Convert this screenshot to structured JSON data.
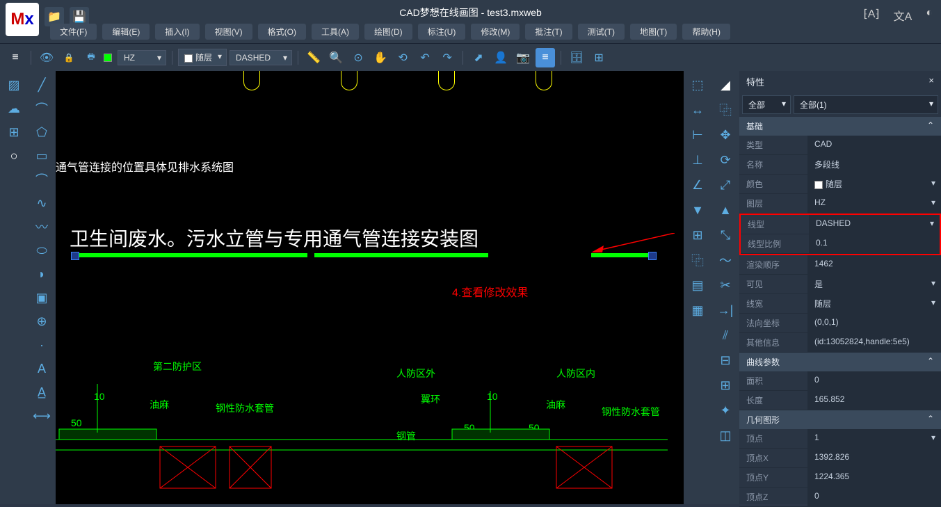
{
  "app": {
    "title": "CAD梦想在线画图 - test3.mxweb"
  },
  "menu": {
    "items": [
      "文件(F)",
      "编辑(E)",
      "插入(I)",
      "视图(V)",
      "格式(O)",
      "工具(A)",
      "绘图(D)",
      "标注(U)",
      "修改(M)",
      "批注(T)",
      "测试(T)",
      "地图(T)",
      "帮助(H)"
    ]
  },
  "toolbar": {
    "layer": "HZ",
    "color_label": "随层",
    "linetype": "DASHED"
  },
  "canvas": {
    "text1": "通气管连接的位置具体见排水系统图",
    "text2": "卫生间废水。污水立管与专用通气管连接安装图",
    "annotation": "4.查看修改效果",
    "label_area1": "第二防护区",
    "label_area2": "人防区外",
    "label_area3": "人防区内",
    "label_youma": "油麻",
    "label_pipe": "钢性防水套管",
    "label_pipe2": "钢管",
    "label_ring": "翼环",
    "dim_10": "10",
    "dim_50": "50"
  },
  "props": {
    "title": "特性",
    "sel1": "全部",
    "sel2": "全部(1)",
    "section_base": "基础",
    "rows_base": [
      {
        "label": "类型",
        "value": "CAD"
      },
      {
        "label": "名称",
        "value": "多段线"
      },
      {
        "label": "颜色",
        "value": "随层",
        "dd": true,
        "color": "#ffffff"
      },
      {
        "label": "图层",
        "value": "HZ",
        "dd": true
      },
      {
        "label": "线型",
        "value": "DASHED",
        "dd": true,
        "hl": true
      },
      {
        "label": "线型比例",
        "value": "0.1",
        "hl": true
      },
      {
        "label": "渲染顺序",
        "value": "1462"
      },
      {
        "label": "可见",
        "value": "是",
        "dd": true
      },
      {
        "label": "线宽",
        "value": "随层",
        "dd": true
      },
      {
        "label": "法向坐标",
        "value": "(0,0,1)"
      },
      {
        "label": "其他信息",
        "value": "(id:13052824,handle:5e5)"
      }
    ],
    "section_curve": "曲线参数",
    "rows_curve": [
      {
        "label": "面积",
        "value": "0"
      },
      {
        "label": "长度",
        "value": "165.852"
      }
    ],
    "section_geom": "几何图形",
    "rows_geom": [
      {
        "label": "顶点",
        "value": "1",
        "dd": true
      },
      {
        "label": "顶点X",
        "value": "1392.826"
      },
      {
        "label": "顶点Y",
        "value": "1224.365"
      },
      {
        "label": "顶点Z",
        "value": "0"
      }
    ]
  }
}
